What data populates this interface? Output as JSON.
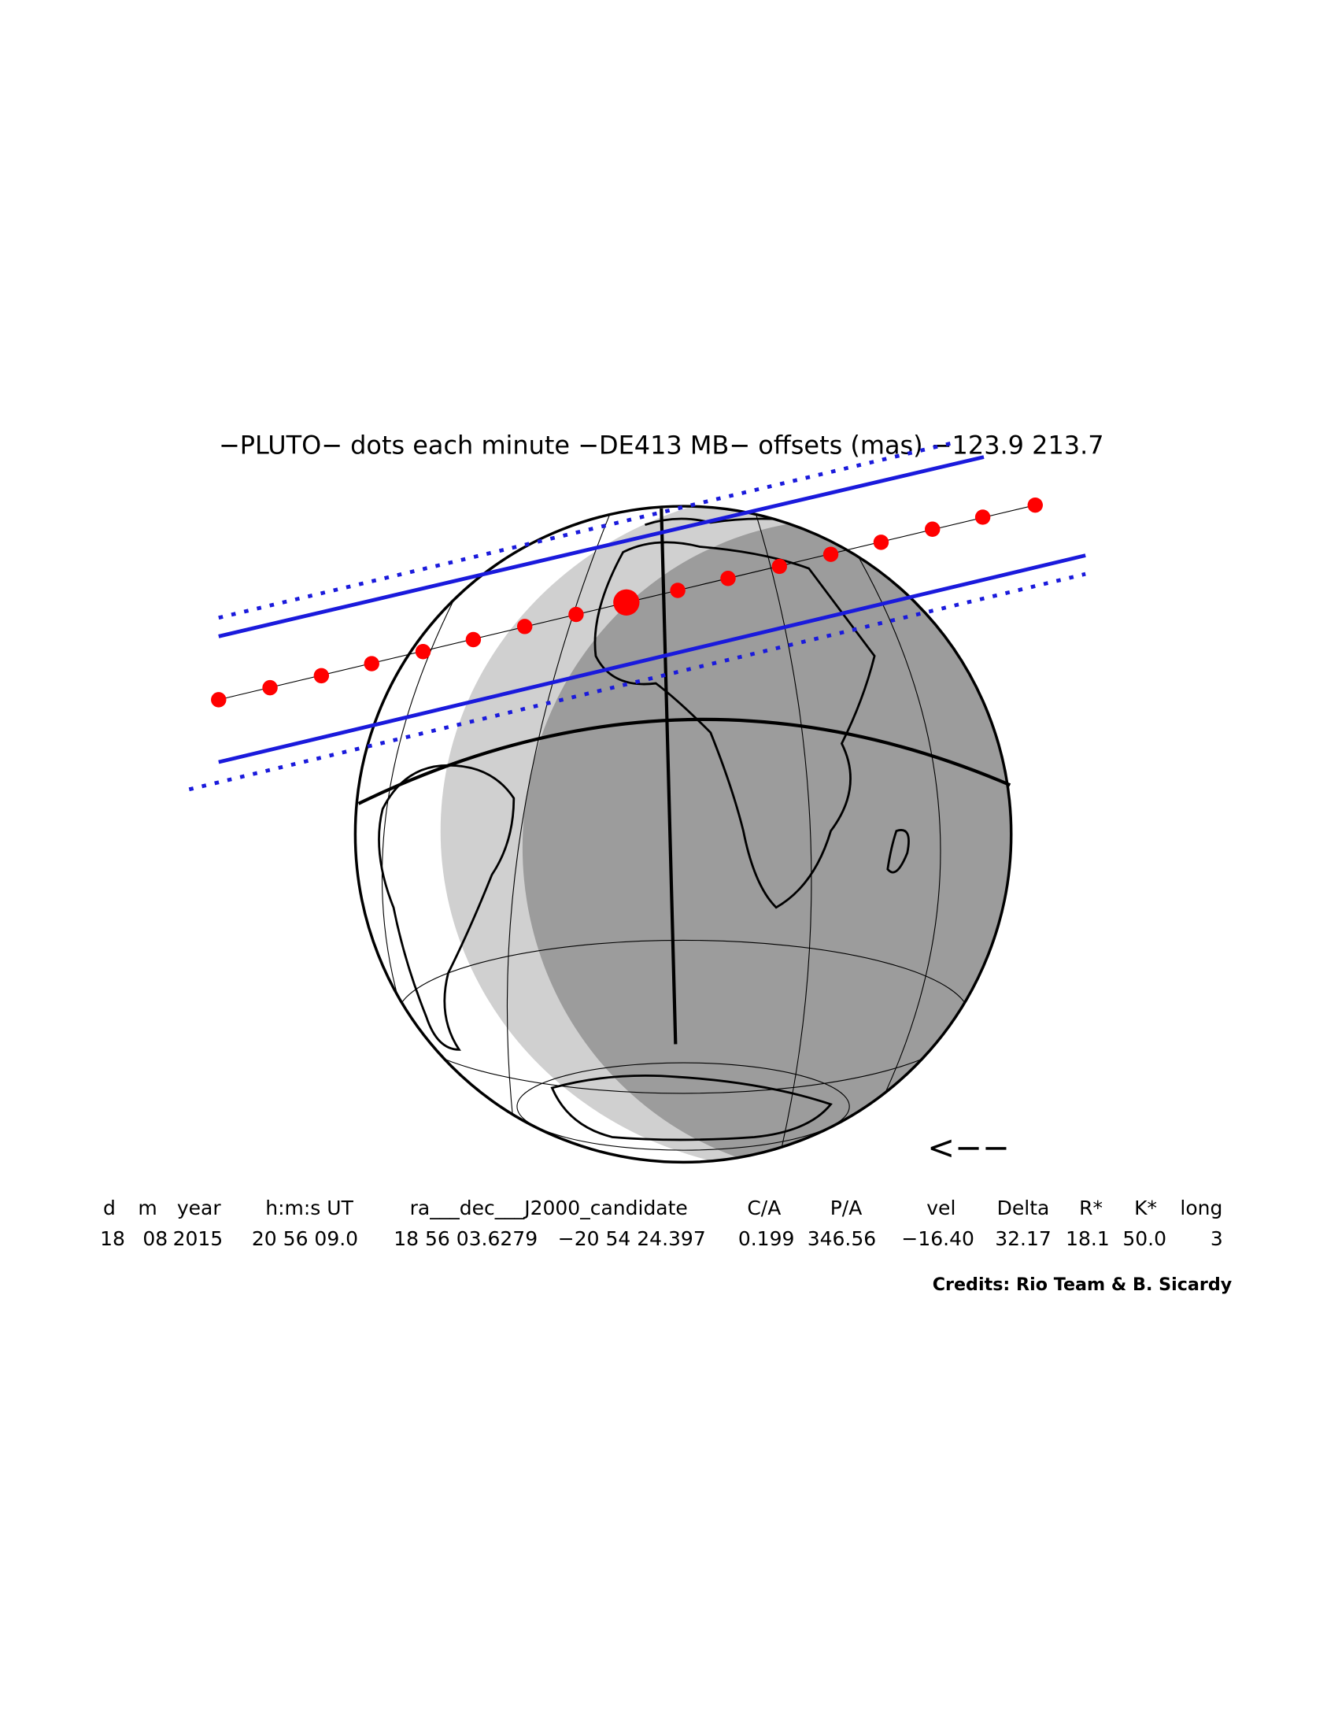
{
  "title": "−PLUTO− dots each minute −DE413 MB− offsets (mas) −123.9   213.7",
  "direction_arrow": "<−−",
  "table": {
    "header": [
      "d",
      "m",
      "year",
      "h:m:s UT",
      "ra___dec___J2000_candidate",
      "C/A",
      "P/A",
      "vel",
      "Delta",
      "R*",
      "K*",
      "long"
    ],
    "row": [
      "18",
      "08",
      "2015",
      "20 56 09.0",
      "18 56 03.6279",
      "−20 54 24.397",
      "0.199",
      "346.56",
      "−16.40",
      "32.17",
      "18.1",
      "50.0",
      "3"
    ]
  },
  "credits": "Credits: Rio Team & B. Sicardy"
}
